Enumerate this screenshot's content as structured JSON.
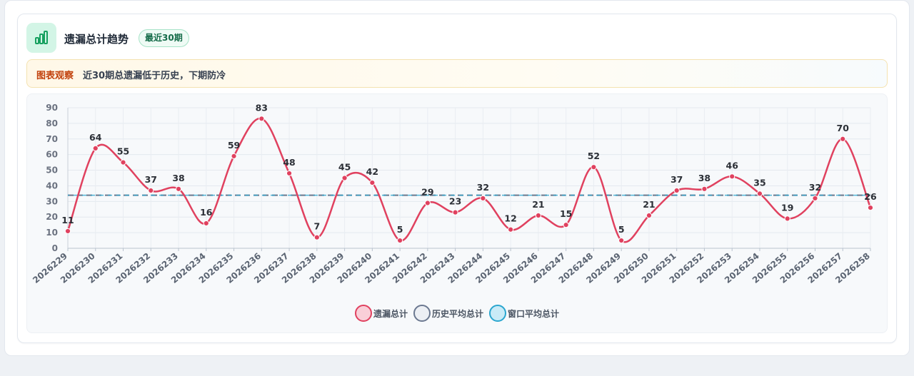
{
  "header": {
    "title": "遗漏总计趋势",
    "badge": "最近30期",
    "icon": "bar-chart-icon"
  },
  "notice": {
    "label": "图表观察",
    "text": "近30期总遗漏低于历史，下期防冷"
  },
  "colors": {
    "series_line": "#e0415f",
    "series_fill": "#f9cfd8",
    "history_line": "#5b6b80",
    "history_fill": "#eceff4",
    "window_line": "#2aa6cf",
    "window_fill": "#c9ebf7",
    "accent_green": "#16a05f"
  },
  "chart_data": {
    "type": "line",
    "categories": [
      "2026229",
      "2026230",
      "2026231",
      "2026232",
      "2026233",
      "2026234",
      "2026235",
      "2026236",
      "2026237",
      "2026238",
      "2026239",
      "2026240",
      "2026241",
      "2026242",
      "2026243",
      "2026244",
      "2026245",
      "2026246",
      "2026247",
      "2026248",
      "2026249",
      "2026250",
      "2026251",
      "2026252",
      "2026253",
      "2026254",
      "2026255",
      "2026256",
      "2026257",
      "2026258"
    ],
    "series": [
      {
        "name": "遗漏总计",
        "values": [
          11,
          64,
          55,
          37,
          38,
          16,
          59,
          83,
          48,
          7,
          45,
          42,
          5,
          29,
          23,
          32,
          12,
          21,
          15,
          52,
          5,
          21,
          37,
          38,
          46,
          35,
          19,
          32,
          70,
          26
        ]
      }
    ],
    "reference_lines": [
      {
        "name": "历史平均总计",
        "value": 34
      },
      {
        "name": "窗口平均总计",
        "value": 34
      }
    ],
    "ylim": [
      0,
      90
    ],
    "y_ticks": [
      0,
      10,
      20,
      30,
      40,
      50,
      60,
      70,
      80,
      90
    ],
    "grid": true,
    "legend": "bottom"
  }
}
